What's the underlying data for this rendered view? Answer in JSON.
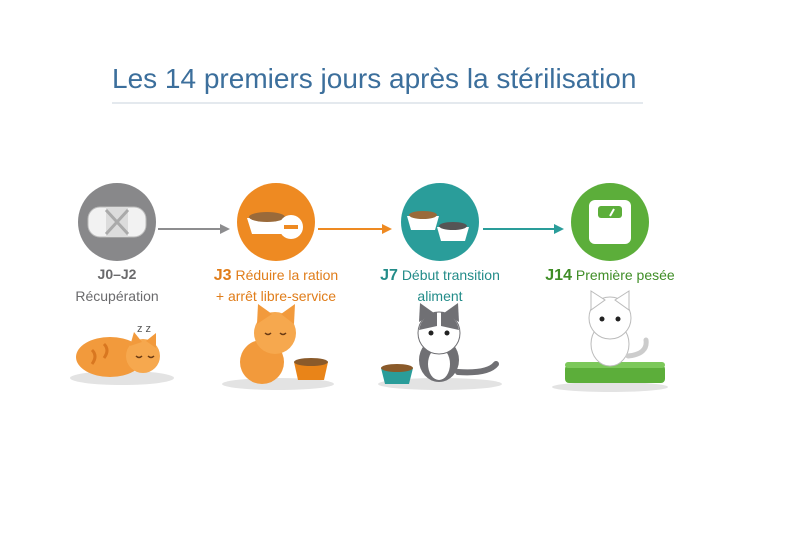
{
  "title": "Les 14 premiers jours après la stérilisation",
  "steps": [
    {
      "day": "J0–J2",
      "lines": [
        "Récupération"
      ]
    },
    {
      "day": "J3",
      "lines": [
        "Réduire la ration",
        "+ arrêt libre-service"
      ]
    },
    {
      "day": "J7",
      "lines": [
        "Début transition",
        "aliment"
      ]
    },
    {
      "day": "J14",
      "lines": [
        "Première pesée"
      ]
    }
  ]
}
